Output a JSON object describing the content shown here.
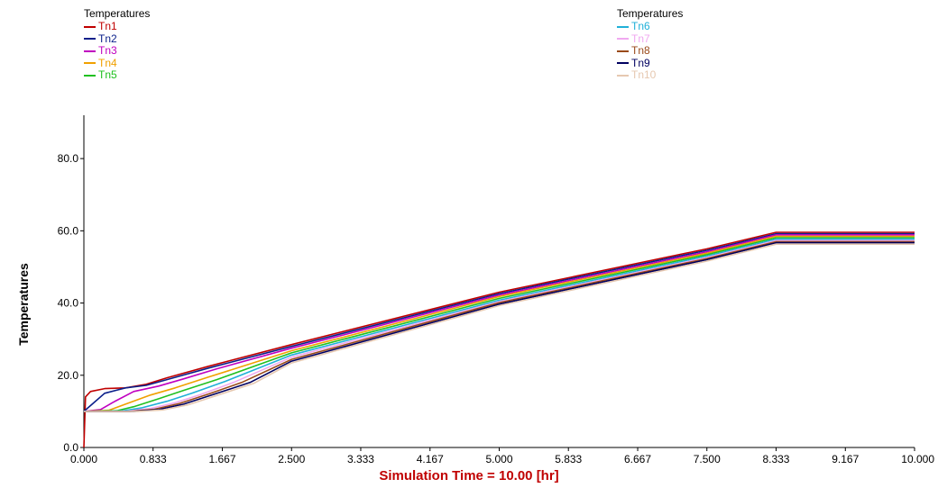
{
  "legend_left": {
    "title": "Temperatures",
    "series_index": [
      0,
      1,
      2,
      3,
      4
    ]
  },
  "legend_right": {
    "title": "Temperatures",
    "series_index": [
      5,
      6,
      7,
      8,
      9
    ]
  },
  "chart_data": {
    "type": "line",
    "xlabel": "Simulation Time =  10.00 [hr]",
    "ylabel": "Temperatures",
    "xlim": [
      0,
      10
    ],
    "ylim": [
      0,
      92
    ],
    "x_ticks": [
      "0.000",
      "0.833",
      "1.667",
      "2.500",
      "3.333",
      "4.167",
      "5.000",
      "5.833",
      "6.667",
      "7.500",
      "8.333",
      "9.167",
      "10.000"
    ],
    "y_ticks": [
      "0.0",
      "20.0",
      "40.0",
      "60.0",
      "80.0"
    ],
    "grid": false,
    "legend_placement": "top",
    "series": [
      {
        "name": "Tn1",
        "color": "#c00000",
        "points": [
          [
            0,
            0
          ],
          [
            0.02,
            14
          ],
          [
            0.08,
            15.5
          ],
          [
            0.25,
            16.3
          ],
          [
            0.5,
            16.5
          ],
          [
            0.75,
            17.5
          ],
          [
            1.0,
            19.3
          ],
          [
            1.5,
            22.5
          ],
          [
            2.5,
            28.5
          ],
          [
            5.0,
            43
          ],
          [
            7.5,
            55
          ],
          [
            8.333,
            59.6
          ],
          [
            10,
            59.6
          ]
        ]
      },
      {
        "name": "Tn2",
        "color": "#0a1f8a",
        "points": [
          [
            0,
            10
          ],
          [
            0.1,
            12
          ],
          [
            0.25,
            15
          ],
          [
            0.5,
            16.5
          ],
          [
            0.75,
            17.2
          ],
          [
            1.0,
            18.8
          ],
          [
            1.5,
            22
          ],
          [
            2.5,
            28
          ],
          [
            5.0,
            42.6
          ],
          [
            7.5,
            54.6
          ],
          [
            8.333,
            59.2
          ],
          [
            10,
            59.2
          ]
        ]
      },
      {
        "name": "Tn3",
        "color": "#c000c0",
        "points": [
          [
            0,
            10
          ],
          [
            0.2,
            10.5
          ],
          [
            0.35,
            12.5
          ],
          [
            0.6,
            15.5
          ],
          [
            0.9,
            17
          ],
          [
            1.2,
            19
          ],
          [
            1.6,
            21.8
          ],
          [
            2.5,
            27.5
          ],
          [
            5.0,
            42.2
          ],
          [
            7.5,
            54.2
          ],
          [
            8.333,
            58.9
          ],
          [
            10,
            58.9
          ]
        ]
      },
      {
        "name": "Tn4",
        "color": "#f0a000",
        "points": [
          [
            0,
            10
          ],
          [
            0.3,
            10.3
          ],
          [
            0.5,
            12
          ],
          [
            0.8,
            14.5
          ],
          [
            1.1,
            16.5
          ],
          [
            1.5,
            19.5
          ],
          [
            2.5,
            26.8
          ],
          [
            5.0,
            41.8
          ],
          [
            7.5,
            53.8
          ],
          [
            8.333,
            58.5
          ],
          [
            10,
            58.5
          ]
        ]
      },
      {
        "name": "Tn5",
        "color": "#20c020",
        "points": [
          [
            0,
            10
          ],
          [
            0.4,
            10.2
          ],
          [
            0.6,
            11.3
          ],
          [
            0.9,
            13.5
          ],
          [
            1.2,
            15.8
          ],
          [
            1.6,
            18.8
          ],
          [
            2.5,
            26.2
          ],
          [
            5.0,
            41.3
          ],
          [
            7.5,
            53.4
          ],
          [
            8.333,
            58.1
          ],
          [
            10,
            58.1
          ]
        ]
      },
      {
        "name": "Tn6",
        "color": "#20b0d8",
        "points": [
          [
            0,
            10
          ],
          [
            0.45,
            10.1
          ],
          [
            0.7,
            11
          ],
          [
            1.0,
            12.8
          ],
          [
            1.3,
            15
          ],
          [
            1.7,
            18.3
          ],
          [
            2.5,
            25.6
          ],
          [
            5.0,
            40.8
          ],
          [
            7.5,
            53
          ],
          [
            8.333,
            57.7
          ],
          [
            10,
            57.7
          ]
        ]
      },
      {
        "name": "Tn7",
        "color": "#f0a8f0",
        "points": [
          [
            0,
            10
          ],
          [
            0.5,
            10
          ],
          [
            0.8,
            10.8
          ],
          [
            1.1,
            12.4
          ],
          [
            1.4,
            14.6
          ],
          [
            1.8,
            18
          ],
          [
            2.5,
            25
          ],
          [
            5.0,
            40.4
          ],
          [
            7.5,
            52.6
          ],
          [
            8.333,
            57.3
          ],
          [
            10,
            57.3
          ]
        ]
      },
      {
        "name": "Tn8",
        "color": "#9a4a1a",
        "points": [
          [
            0,
            10
          ],
          [
            0.55,
            10
          ],
          [
            0.85,
            10.6
          ],
          [
            1.15,
            12.2
          ],
          [
            1.5,
            14.8
          ],
          [
            1.9,
            18
          ],
          [
            2.5,
            24.4
          ],
          [
            5.0,
            40.1
          ],
          [
            7.5,
            52.3
          ],
          [
            8.333,
            57
          ],
          [
            10,
            57
          ]
        ]
      },
      {
        "name": "Tn9",
        "color": "#000060",
        "points": [
          [
            0,
            10
          ],
          [
            0.6,
            10
          ],
          [
            0.9,
            10.5
          ],
          [
            1.2,
            12
          ],
          [
            1.55,
            14.6
          ],
          [
            2.0,
            18
          ],
          [
            2.5,
            23.9
          ],
          [
            5.0,
            39.7
          ],
          [
            7.5,
            52
          ],
          [
            8.333,
            56.7
          ],
          [
            10,
            56.7
          ]
        ]
      },
      {
        "name": "Tn10",
        "color": "#e6c8b0",
        "points": [
          [
            0,
            10
          ],
          [
            0.65,
            10
          ],
          [
            0.95,
            10.4
          ],
          [
            1.25,
            11.8
          ],
          [
            1.6,
            14.4
          ],
          [
            2.05,
            17.8
          ],
          [
            2.5,
            23.4
          ],
          [
            5.0,
            39.3
          ],
          [
            7.5,
            51.6
          ],
          [
            8.333,
            56.3
          ],
          [
            10,
            56.3
          ]
        ]
      }
    ]
  }
}
